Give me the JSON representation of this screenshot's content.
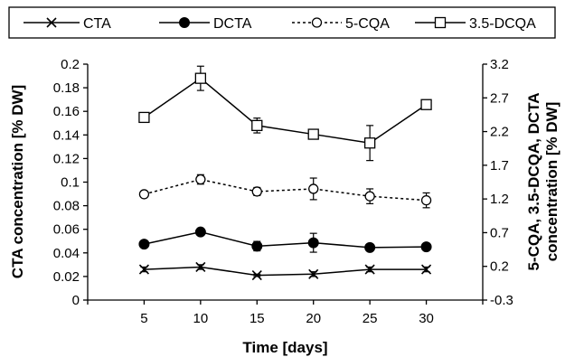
{
  "chart_data": {
    "type": "line",
    "x": [
      5,
      10,
      15,
      20,
      25,
      30
    ],
    "xlabel": "Time [days]",
    "ylabel_left": "CTA concentration [% DW]",
    "ylabel_right_line1": "5-CQA, 3.5-DCQA, DCTA",
    "ylabel_right_line2": "concentration [% DW]",
    "xlim": [
      0,
      35
    ],
    "ylim_left": [
      0,
      0.2
    ],
    "ylim_right": [
      -0.3,
      3.2
    ],
    "x_ticks": [
      "0",
      "5",
      "10",
      "15",
      "20",
      "25",
      "30",
      "35"
    ],
    "x_tick_labels_shown": [
      "5",
      "10",
      "15",
      "20",
      "25",
      "30"
    ],
    "y_left_ticks": [
      "0",
      "0.02",
      "0.04",
      "0.06",
      "0.08",
      "0.1",
      "0.12",
      "0.14",
      "0.16",
      "0.18",
      "0.2"
    ],
    "y_right_ticks": [
      "-0.3",
      "0.2",
      "0.7",
      "1.2",
      "1.7",
      "2.2",
      "2.7",
      "3.2"
    ],
    "grid": false,
    "legend_position": "top",
    "series": [
      {
        "name": "CTA",
        "axis": "left",
        "marker": "x",
        "line": "solid",
        "color": "#000000",
        "values": [
          0.026,
          0.028,
          0.021,
          0.022,
          0.026,
          0.026
        ],
        "errors": [
          0.002,
          0.002,
          0.001,
          0.002,
          0.002,
          0.002
        ]
      },
      {
        "name": "DCTA",
        "axis": "right",
        "marker": "filled-circle",
        "line": "solid",
        "color": "#000000",
        "values": [
          0.53,
          0.71,
          0.5,
          0.55,
          0.48,
          0.49
        ],
        "errors": [
          0.0,
          0.0,
          0.07,
          0.14,
          0.04,
          0.03
        ]
      },
      {
        "name": "5-CQA",
        "axis": "right",
        "marker": "open-circle",
        "line": "dotted",
        "color": "#000000",
        "values": [
          1.27,
          1.49,
          1.31,
          1.35,
          1.24,
          1.18
        ],
        "errors": [
          0.0,
          0.07,
          0.06,
          0.16,
          0.11,
          0.11
        ]
      },
      {
        "name": "3.5-DCQA",
        "axis": "right",
        "marker": "open-square",
        "line": "solid",
        "color": "#000000",
        "values": [
          2.41,
          2.99,
          2.29,
          2.16,
          2.03,
          2.6
        ],
        "errors": [
          0.0,
          0.18,
          0.11,
          0.0,
          0.26,
          0.05
        ]
      }
    ]
  }
}
